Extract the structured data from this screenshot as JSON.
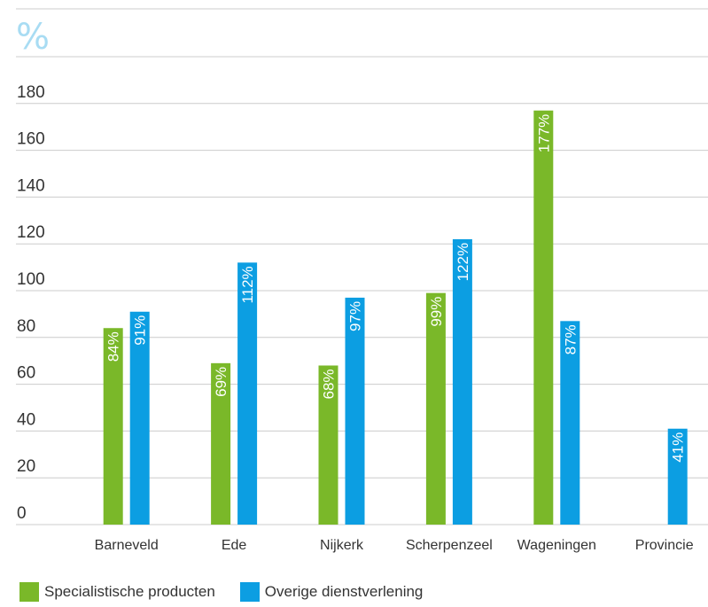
{
  "chart_data": {
    "type": "bar",
    "unit_label": "%",
    "categories": [
      "Barneveld",
      "Ede",
      "Nijkerk",
      "Scherpenzeel",
      "Wageningen",
      "Provincie"
    ],
    "series": [
      {
        "name": "Specialistische producten",
        "color": "#7ab829",
        "values": [
          84,
          69,
          68,
          99,
          177,
          null
        ],
        "labels": [
          "84%",
          "69%",
          "68%",
          "99%",
          "177%",
          ""
        ]
      },
      {
        "name": "Overige dienstverlening",
        "color": "#0c9ee2",
        "values": [
          91,
          112,
          97,
          122,
          87,
          41
        ],
        "labels": [
          "91%",
          "112%",
          "97%",
          "122%",
          "87%",
          "41%"
        ]
      }
    ],
    "yticks": [
      0,
      20,
      40,
      60,
      80,
      100,
      120,
      140,
      160,
      180
    ],
    "ylim": [
      0,
      200
    ],
    "grid": true,
    "legend_position": "bottom-left"
  }
}
